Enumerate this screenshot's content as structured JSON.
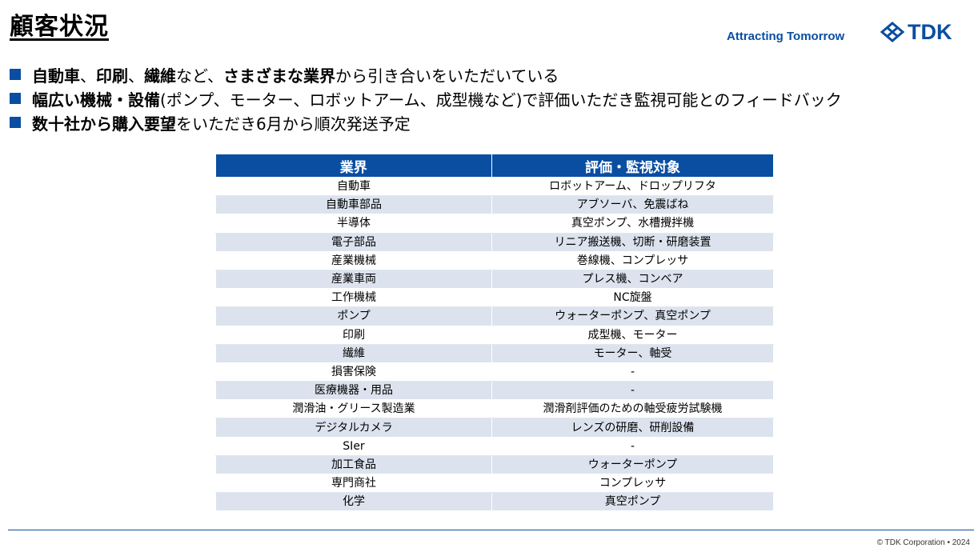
{
  "title": "顧客状況",
  "brand": {
    "tagline": "Attracting Tomorrow",
    "logo_text": "TDK",
    "accent_color": "#0a4ea2"
  },
  "bullets": [
    {
      "segments": [
        {
          "text": "自動車",
          "bold": true
        },
        {
          "text": "、",
          "bold": false
        },
        {
          "text": "印刷",
          "bold": true
        },
        {
          "text": "、",
          "bold": false
        },
        {
          "text": "繊維",
          "bold": true
        },
        {
          "text": "など、",
          "bold": false
        },
        {
          "text": "さまざまな業界",
          "bold": true
        },
        {
          "text": "から引き合いをいただいている",
          "bold": false
        }
      ]
    },
    {
      "segments": [
        {
          "text": "幅広い機械・設備",
          "bold": true
        },
        {
          "text": "(ポンプ、モーター、ロボットアーム、成型機など)で評価いただき監視可能とのフィードバック",
          "bold": false
        }
      ]
    },
    {
      "segments": [
        {
          "text": "数十社から購入要望",
          "bold": true
        },
        {
          "text": "をいただき6月から順次発送予定",
          "bold": false
        }
      ]
    }
  ],
  "table": {
    "headers": [
      "業界",
      "評価・監視対象"
    ],
    "rows": [
      [
        "自動車",
        "ロボットアーム、ドロップリフタ"
      ],
      [
        "自動車部品",
        "アブソーバ、免震ばね"
      ],
      [
        "半導体",
        "真空ポンプ、水槽攪拌機"
      ],
      [
        "電子部品",
        "リニア搬送機、切断・研磨装置"
      ],
      [
        "産業機械",
        "巻線機、コンプレッサ"
      ],
      [
        "産業車両",
        "プレス機、コンベア"
      ],
      [
        "工作機械",
        "NC旋盤"
      ],
      [
        "ポンプ",
        "ウォーターポンプ、真空ポンプ"
      ],
      [
        "印刷",
        "成型機、モーター"
      ],
      [
        "繊維",
        "モーター、軸受"
      ],
      [
        "損害保険",
        "-"
      ],
      [
        "医療機器・用品",
        "-"
      ],
      [
        "潤滑油・グリース製造業",
        "潤滑剤評価のための軸受疲労試験機"
      ],
      [
        "デジタルカメラ",
        "レンズの研磨、研削設備"
      ],
      [
        "SIer",
        "-"
      ],
      [
        "加工食品",
        "ウォーターポンプ"
      ],
      [
        "専門商社",
        "コンプレッサ"
      ],
      [
        "化学",
        "真空ポンプ"
      ]
    ]
  },
  "footer": "© TDK Corporation • 2024"
}
